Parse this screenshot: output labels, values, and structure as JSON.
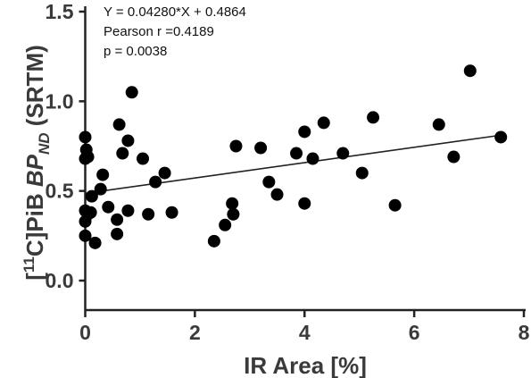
{
  "chart_data": {
    "type": "scatter",
    "xlabel": "IR Area  [%]",
    "ylabel": {
      "prefix": "[",
      "superscript": "11",
      "main": "C]PiB ",
      "italic": "BP",
      "subscript": "ND",
      "suffix": " (SRTM)"
    },
    "xlim": [
      0,
      8
    ],
    "ylim": [
      -0.1,
      1.5
    ],
    "x_ticks": [
      0,
      2,
      4,
      6,
      8
    ],
    "x_tick_labels": [
      "0",
      "2",
      "4",
      "6",
      "8"
    ],
    "y_ticks": [
      0.0,
      0.5,
      1.0,
      1.5
    ],
    "y_tick_labels": [
      "0.0",
      "0.5",
      "1.0",
      "1.5"
    ],
    "grid": false,
    "annotations": [
      "Y = 0.04280*X + 0.4864",
      "Pearson r =0.4189",
      "p = 0.0038"
    ],
    "fit_line": {
      "slope": 0.0428,
      "intercept": 0.4864,
      "x_range": [
        0,
        7.6
      ]
    },
    "points": [
      {
        "x": 0.0,
        "y": 0.8
      },
      {
        "x": 0.02,
        "y": 0.73
      },
      {
        "x": 0.0,
        "y": 0.68
      },
      {
        "x": 0.05,
        "y": 0.69
      },
      {
        "x": 0.0,
        "y": 0.39
      },
      {
        "x": 0.0,
        "y": 0.33
      },
      {
        "x": 0.0,
        "y": 0.25
      },
      {
        "x": 0.05,
        "y": 0.37
      },
      {
        "x": 0.1,
        "y": 0.38
      },
      {
        "x": 0.12,
        "y": 0.47
      },
      {
        "x": 0.18,
        "y": 0.21
      },
      {
        "x": 0.28,
        "y": 0.51
      },
      {
        "x": 0.32,
        "y": 0.59
      },
      {
        "x": 0.42,
        "y": 0.41
      },
      {
        "x": 0.58,
        "y": 0.34
      },
      {
        "x": 0.58,
        "y": 0.26
      },
      {
        "x": 0.62,
        "y": 0.87
      },
      {
        "x": 0.68,
        "y": 0.71
      },
      {
        "x": 0.78,
        "y": 0.78
      },
      {
        "x": 0.78,
        "y": 0.39
      },
      {
        "x": 0.85,
        "y": 1.05
      },
      {
        "x": 1.05,
        "y": 0.68
      },
      {
        "x": 1.15,
        "y": 0.37
      },
      {
        "x": 1.28,
        "y": 0.55
      },
      {
        "x": 1.45,
        "y": 0.6
      },
      {
        "x": 1.58,
        "y": 0.38
      },
      {
        "x": 2.35,
        "y": 0.22
      },
      {
        "x": 2.55,
        "y": 0.31
      },
      {
        "x": 2.68,
        "y": 0.43
      },
      {
        "x": 2.7,
        "y": 0.37
      },
      {
        "x": 2.75,
        "y": 0.75
      },
      {
        "x": 3.2,
        "y": 0.74
      },
      {
        "x": 3.35,
        "y": 0.55
      },
      {
        "x": 3.5,
        "y": 0.48
      },
      {
        "x": 3.85,
        "y": 0.71
      },
      {
        "x": 4.0,
        "y": 0.43
      },
      {
        "x": 4.0,
        "y": 0.83
      },
      {
        "x": 4.15,
        "y": 0.68
      },
      {
        "x": 4.35,
        "y": 0.88
      },
      {
        "x": 4.7,
        "y": 0.71
      },
      {
        "x": 5.05,
        "y": 0.6
      },
      {
        "x": 5.25,
        "y": 0.91
      },
      {
        "x": 5.65,
        "y": 0.42
      },
      {
        "x": 6.45,
        "y": 0.87
      },
      {
        "x": 6.72,
        "y": 0.69
      },
      {
        "x": 7.02,
        "y": 1.17
      },
      {
        "x": 7.58,
        "y": 0.8
      }
    ]
  }
}
